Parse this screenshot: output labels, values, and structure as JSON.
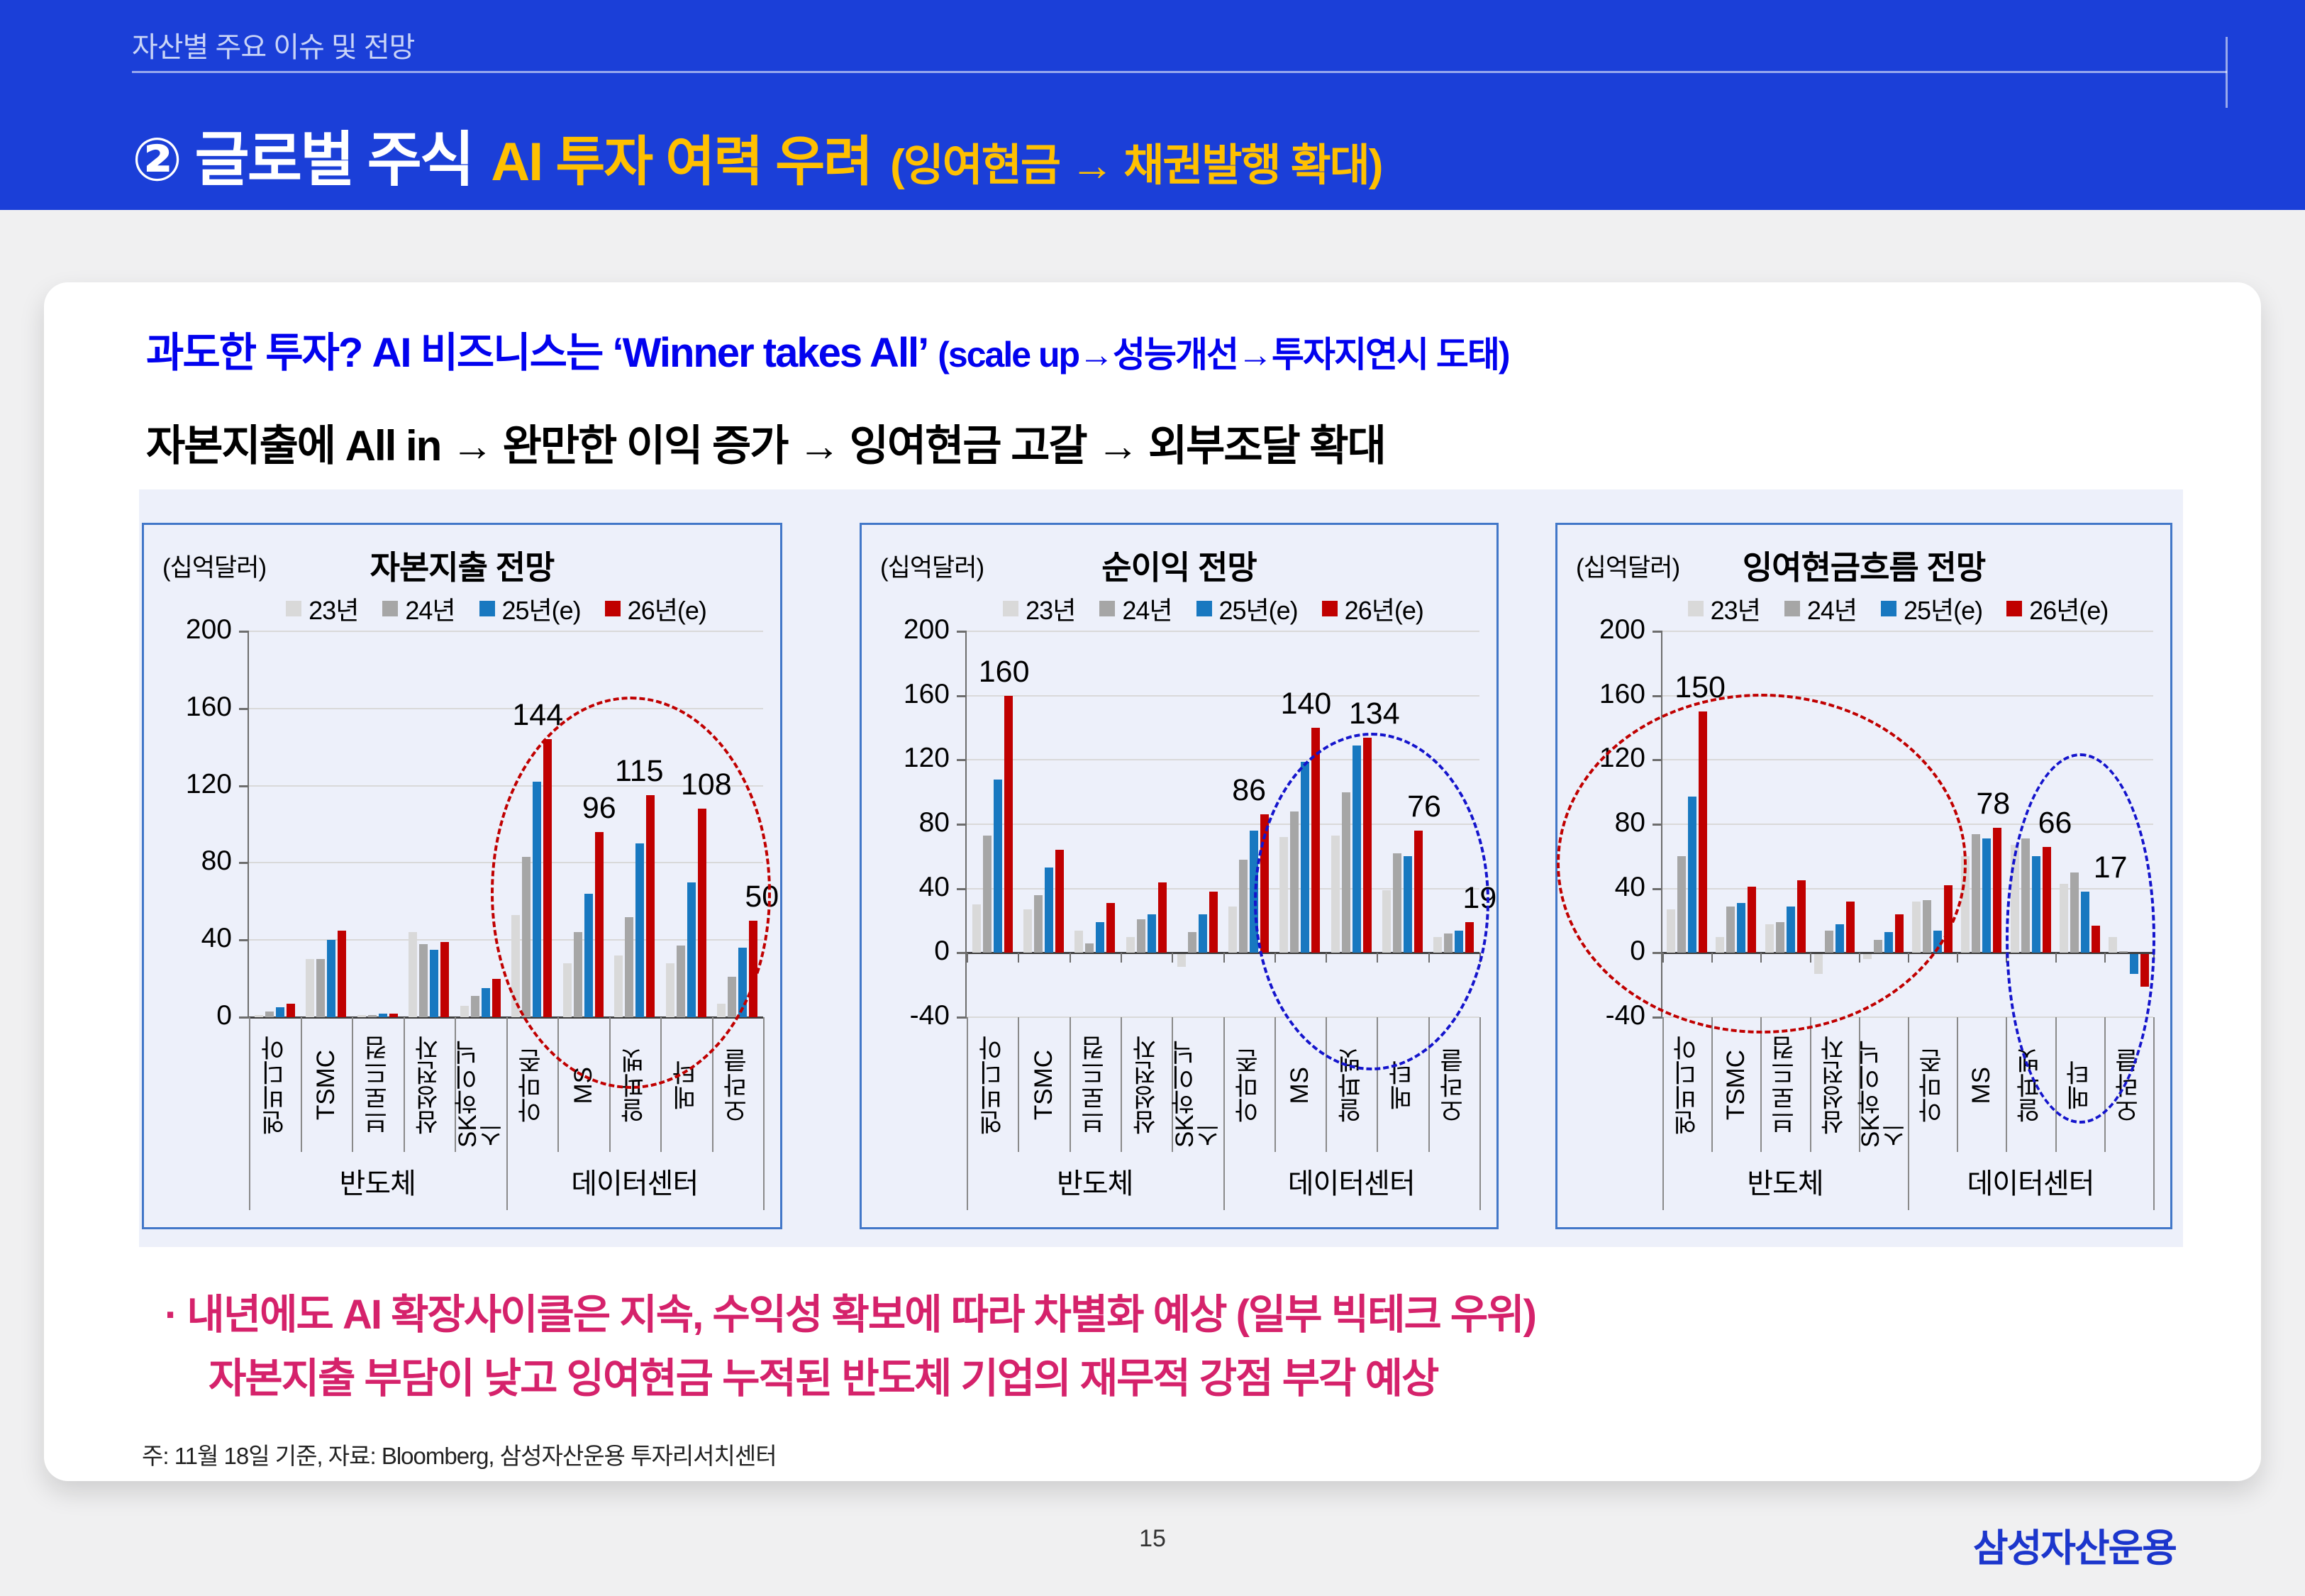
{
  "header": {
    "eyebrow": "자산별 주요 이슈 및 전망",
    "title_main": "② 글로벌 주식",
    "title_accent": "AI 투자 여력 우려",
    "title_paren": "(잉여현금 → 채권발행 확대)"
  },
  "intro": {
    "line1": "과도한 투자? AI 비즈니스는 ‘Winner takes All’",
    "line1_paren": "(scale up→성능개선→투자지연시 도태)",
    "line2": "자본지출에 All in → 완만한 이익 증가 → 잉여현금 고갈 → 외부조달 확대"
  },
  "charts_common": {
    "unit": "(십억달러)",
    "legend": [
      "23년",
      "24년",
      "25년(e)",
      "26년(e)"
    ],
    "series_colors": [
      "#d9d9d9",
      "#a6a6a6",
      "#1878c0",
      "#c00000"
    ],
    "categories": [
      "엔비디아",
      "TSMC",
      "브로드컴",
      "삼성전자",
      "SK하이닉스",
      "아마존",
      "MS",
      "알파벳",
      "메타",
      "오라클"
    ],
    "group_labels": [
      "반도체",
      "데이터센터"
    ]
  },
  "chart_data": [
    {
      "type": "bar",
      "title": "자본지출 전망",
      "ylabel": "(십억달러)",
      "ylim": [
        0,
        200
      ],
      "yticks": [
        0,
        40,
        80,
        120,
        160,
        200
      ],
      "categories": [
        "엔비디아",
        "TSMC",
        "브로드컴",
        "삼성전자",
        "SK하이닉스",
        "아마존",
        "MS",
        "알파벳",
        "메타",
        "오라클"
      ],
      "series": [
        {
          "name": "23년",
          "values": [
            1,
            30,
            1,
            44,
            6,
            53,
            28,
            32,
            28,
            7
          ]
        },
        {
          "name": "24년",
          "values": [
            3,
            30,
            1,
            38,
            11,
            83,
            44,
            52,
            37,
            21
          ]
        },
        {
          "name": "25년(e)",
          "values": [
            5,
            40,
            2,
            35,
            15,
            122,
            64,
            90,
            70,
            36
          ]
        },
        {
          "name": "26년(e)",
          "values": [
            7,
            45,
            2,
            39,
            20,
            144,
            96,
            115,
            108,
            50
          ]
        }
      ],
      "annotations": [
        {
          "g": 5,
          "text": "144",
          "dx": -14
        },
        {
          "g": 6,
          "text": "96",
          "dx": 0
        },
        {
          "g": 7,
          "text": "115",
          "dx": -16
        },
        {
          "g": 8,
          "text": "108",
          "dx": 6
        },
        {
          "g": 9,
          "text": "50",
          "dx": 12
        }
      ],
      "ellipses": [
        {
          "color": "#c00000",
          "gx0": 4.7,
          "gx1": 10.15,
          "v0": -37,
          "v1": 166
        }
      ]
    },
    {
      "type": "bar",
      "title": "순이익 전망",
      "ylabel": "(십억달러)",
      "ylim": [
        -40,
        200
      ],
      "yticks": [
        -40,
        0,
        40,
        80,
        120,
        160,
        200
      ],
      "categories": [
        "엔비디아",
        "TSMC",
        "브로드컴",
        "삼성전자",
        "SK하이닉스",
        "아마존",
        "MS",
        "알파벳",
        "메타",
        "오라클"
      ],
      "series": [
        {
          "name": "23년",
          "values": [
            30,
            27,
            14,
            10,
            -8,
            29,
            72,
            73,
            39,
            10
          ]
        },
        {
          "name": "24년",
          "values": [
            73,
            36,
            6,
            21,
            13,
            58,
            88,
            100,
            62,
            12
          ]
        },
        {
          "name": "25년(e)",
          "values": [
            108,
            53,
            19,
            24,
            24,
            76,
            119,
            129,
            60,
            14
          ]
        },
        {
          "name": "26년(e)",
          "values": [
            160,
            64,
            31,
            44,
            38,
            86,
            140,
            134,
            76,
            19
          ]
        }
      ],
      "annotations": [
        {
          "g": 0,
          "text": "160",
          "dx": -6
        },
        {
          "g": 5,
          "text": "86",
          "dx": -22
        },
        {
          "g": 6,
          "text": "140",
          "dx": -14
        },
        {
          "g": 7,
          "text": "134",
          "dx": 10
        },
        {
          "g": 8,
          "text": "76",
          "dx": 8
        },
        {
          "g": 9,
          "text": "19",
          "dx": 14
        }
      ],
      "ellipses": [
        {
          "color": "#1414cc",
          "gx0": 5.6,
          "gx1": 10.2,
          "v0": -73,
          "v1": 137
        }
      ]
    },
    {
      "type": "bar",
      "title": "잉여현금흐름 전망",
      "ylabel": "(십억달러)",
      "ylim": [
        -40,
        200
      ],
      "yticks": [
        -40,
        0,
        40,
        80,
        120,
        160,
        200
      ],
      "categories": [
        "엔비디아",
        "TSMC",
        "브로드컴",
        "삼성전자",
        "SK하이닉스",
        "아마존",
        "MS",
        "알파벳",
        "메타",
        "오라클"
      ],
      "series": [
        {
          "name": "23년",
          "values": [
            27,
            10,
            18,
            -12,
            -3,
            32,
            60,
            67,
            43,
            10
          ]
        },
        {
          "name": "24년",
          "values": [
            60,
            29,
            19,
            14,
            8,
            33,
            74,
            71,
            50,
            1
          ]
        },
        {
          "name": "25년(e)",
          "values": [
            97,
            31,
            29,
            18,
            13,
            14,
            71,
            60,
            38,
            -12
          ]
        },
        {
          "name": "26년(e)",
          "values": [
            150,
            41,
            45,
            32,
            24,
            42,
            78,
            66,
            17,
            -20
          ]
        }
      ],
      "annotations": [
        {
          "g": 0,
          "text": "150",
          "dx": -4
        },
        {
          "g": 6,
          "text": "78",
          "dx": -6
        },
        {
          "g": 7,
          "text": "66",
          "dx": 12
        },
        {
          "g": 8,
          "text": "17",
          "s": 2,
          "dx": 36
        }
      ],
      "ellipses": [
        {
          "color": "#c00000",
          "gx0": -2.15,
          "gx1": 6.2,
          "v0": -50,
          "v1": 161
        },
        {
          "color": "#1414cc",
          "gx0": 7.0,
          "gx1": 10.05,
          "v0": -106,
          "v1": 124
        }
      ]
    }
  ],
  "callouts": {
    "line1": "· 내년에도 AI 확장사이클은 지속, 수익성 확보에 따라 차별화 예상 (일부 빅테크 우위)",
    "line2": "자본지출 부담이 낮고 잉여현금 누적된 반도체 기업의 재무적 강점 부각 예상"
  },
  "footnote": "주: 11월 18일 기준, 자료: Bloomberg, 삼성자산운용 투자리서치센터",
  "page_number": "15",
  "logo": "삼성자산운용"
}
